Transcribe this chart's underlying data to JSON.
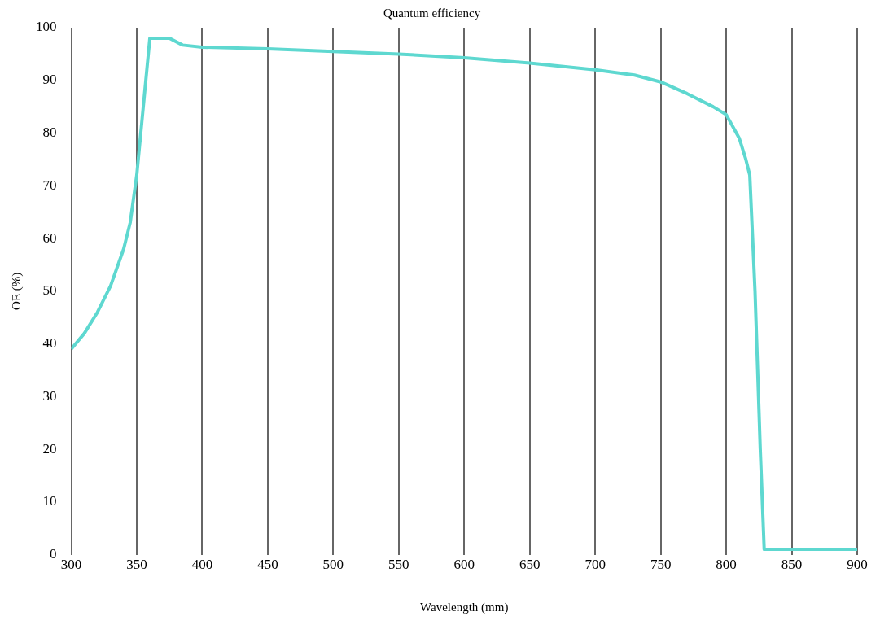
{
  "chart_data": {
    "type": "line",
    "title": "Quantum efficiency",
    "xlabel": "Wavelength (mm)",
    "ylabel": "OE (%)",
    "xlim": [
      300,
      900
    ],
    "xticks": [
      300,
      350,
      400,
      450,
      500,
      550,
      600,
      650,
      700,
      750,
      800,
      850,
      900
    ],
    "ylim": [
      0,
      100
    ],
    "yticks": [
      0,
      10,
      20,
      30,
      40,
      50,
      60,
      70,
      80,
      90,
      100
    ],
    "grid": "x",
    "legend": false,
    "marker": "none",
    "line_style": "solid",
    "series": [
      {
        "color": "#5ed8d0",
        "x": [
          300,
          310,
          320,
          330,
          340,
          345,
          350,
          355,
          360,
          375,
          385,
          400,
          450,
          500,
          550,
          600,
          650,
          700,
          730,
          750,
          770,
          790,
          800,
          810,
          815,
          818,
          822,
          826,
          829,
          835,
          900
        ],
        "values": [
          39,
          42,
          46,
          51,
          58,
          63,
          72,
          85,
          98,
          98,
          96.7,
          96.3,
          96,
          95.5,
          95,
          94.3,
          93.3,
          92,
          91,
          89.7,
          87.5,
          85,
          83.5,
          79,
          75,
          72,
          50,
          20,
          1,
          1,
          1
        ]
      }
    ]
  }
}
